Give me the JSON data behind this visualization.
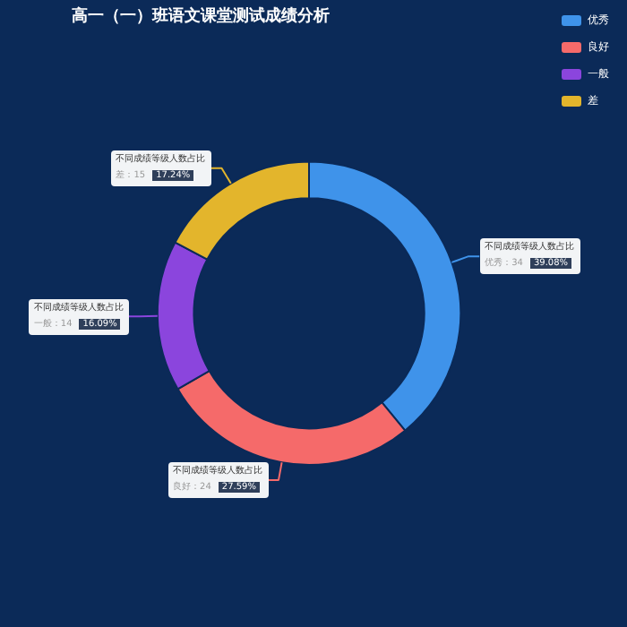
{
  "chart_data": {
    "type": "donut",
    "title": "高一（一）班语文课堂测试成绩分析",
    "categories": [
      "优秀",
      "良好",
      "一般",
      "差"
    ],
    "series": [
      {
        "name": "不同成绩等级人数占比",
        "values": [
          39.08,
          27.59,
          16.09,
          17.24
        ]
      }
    ],
    "colors": [
      "#3f93ea",
      "#f56a6a",
      "#8b45dd",
      "#e3b52c"
    ],
    "value_labels": [
      "优秀：34 39.08%",
      "良好：24 27.59%",
      "一般：14 16.09%",
      "差：15 17.24%"
    ],
    "legend": "top right"
  }
}
